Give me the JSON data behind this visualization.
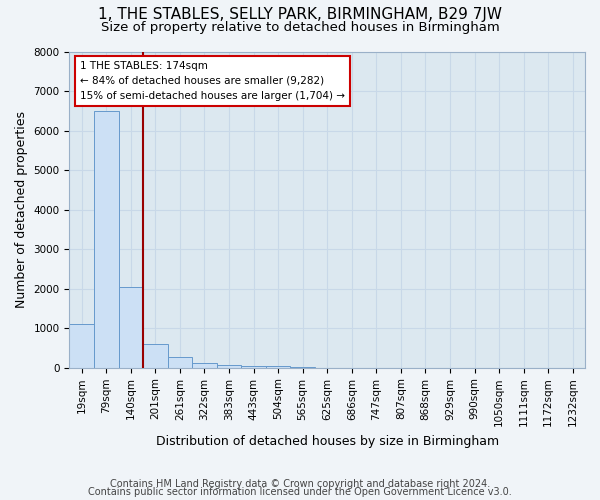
{
  "title": "1, THE STABLES, SELLY PARK, BIRMINGHAM, B29 7JW",
  "subtitle": "Size of property relative to detached houses in Birmingham",
  "xlabel": "Distribution of detached houses by size in Birmingham",
  "ylabel": "Number of detached properties",
  "footer_line1": "Contains HM Land Registry data © Crown copyright and database right 2024.",
  "footer_line2": "Contains public sector information licensed under the Open Government Licence v3.0.",
  "bin_labels": [
    "19sqm",
    "79sqm",
    "140sqm",
    "201sqm",
    "261sqm",
    "322sqm",
    "383sqm",
    "443sqm",
    "504sqm",
    "565sqm",
    "625sqm",
    "686sqm",
    "747sqm",
    "807sqm",
    "868sqm",
    "929sqm",
    "990sqm",
    "1050sqm",
    "1111sqm",
    "1172sqm",
    "1232sqm"
  ],
  "bar_values": [
    1100,
    6500,
    2050,
    600,
    280,
    130,
    80,
    55,
    55,
    20,
    0,
    0,
    0,
    0,
    0,
    0,
    0,
    0,
    0,
    0,
    0
  ],
  "bar_color": "#cce0f5",
  "bar_edge_color": "#6699cc",
  "vline_color": "#990000",
  "annotation_text": "1 THE STABLES: 174sqm\n← 84% of detached houses are smaller (9,282)\n15% of semi-detached houses are larger (1,704) →",
  "annotation_box_color": "#ffffff",
  "annotation_box_edge": "#cc0000",
  "ylim": [
    0,
    8000
  ],
  "yticks": [
    0,
    1000,
    2000,
    3000,
    4000,
    5000,
    6000,
    7000,
    8000
  ],
  "grid_color": "#c8d8e8",
  "bg_color": "#dce8f0",
  "title_fontsize": 11,
  "subtitle_fontsize": 9.5,
  "axis_label_fontsize": 9,
  "tick_fontsize": 7.5,
  "footer_fontsize": 7
}
